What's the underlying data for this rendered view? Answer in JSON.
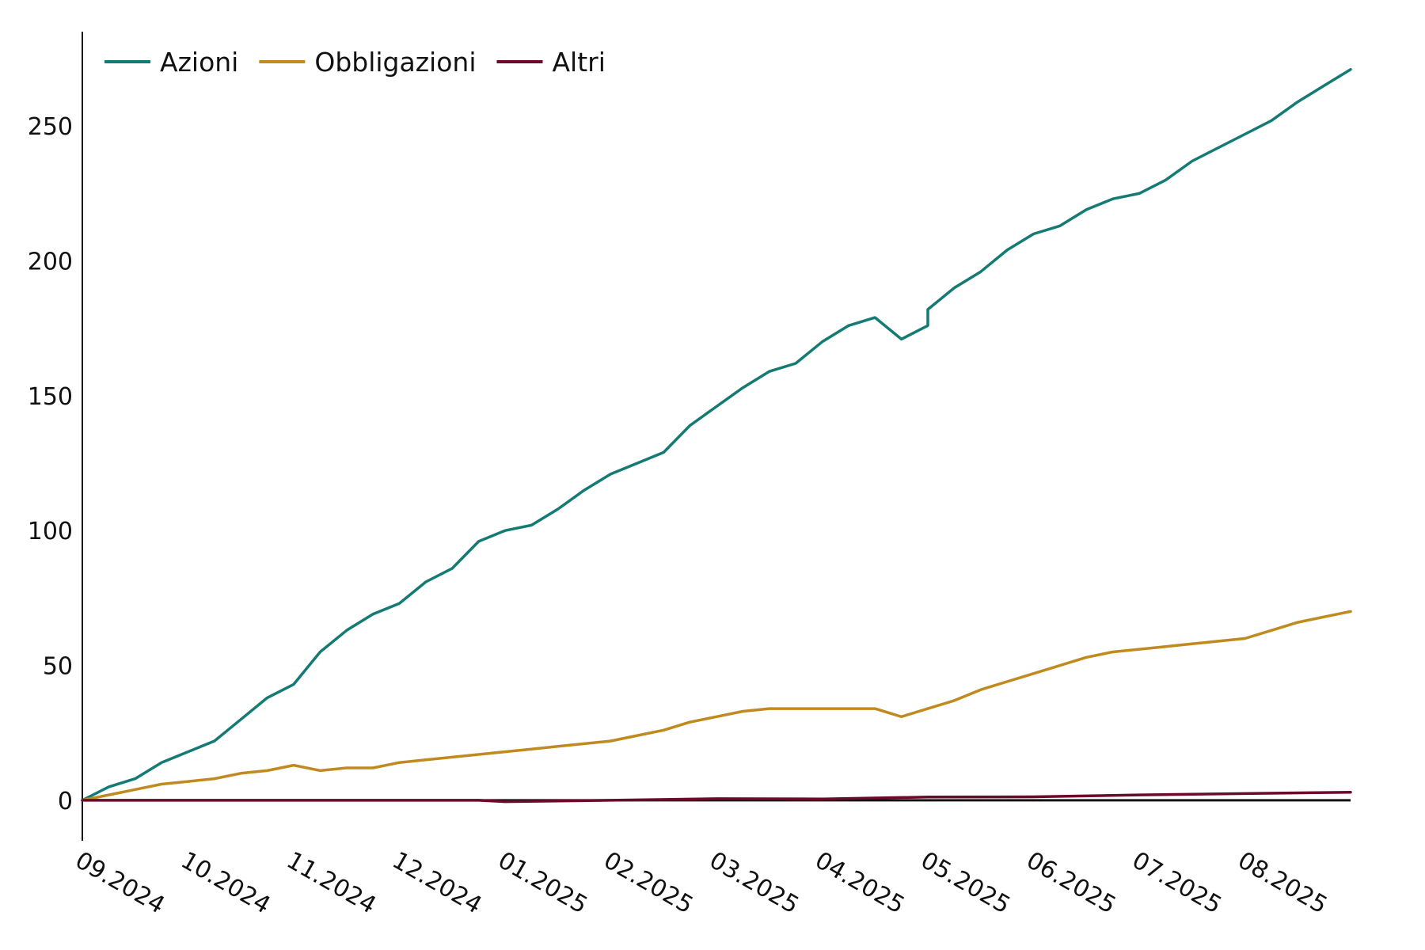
{
  "chart_data": {
    "type": "line",
    "title": "",
    "xlabel": "",
    "ylabel": "",
    "ylim": [
      -15,
      285
    ],
    "yticks": [
      0,
      50,
      100,
      150,
      200,
      250
    ],
    "x_tick_labels": [
      "09.2024",
      "10.2024",
      "11.2024",
      "12.2024",
      "01.2025",
      "02.2025",
      "03.2025",
      "04.2025",
      "05.2025",
      "06.2025",
      "07.2025",
      "08.2025"
    ],
    "x": [
      "09.2024",
      "10.2024",
      "11.2024",
      "12.2024",
      "01.2025",
      "02.2025",
      "03.2025",
      "04.2025",
      "05.2025",
      "06.2025",
      "07.2025",
      "08.2025",
      "09.2025"
    ],
    "x_last_label": "09.2025 (last point, no tick label shown)",
    "grid": false,
    "legend_position": "top-left",
    "series": [
      {
        "name": "Azioni",
        "color": "#137b73",
        "points": [
          [
            "09.2024",
            0
          ],
          [
            "09.2024+",
            5
          ],
          [
            "09.2024++",
            8
          ],
          [
            "09.2024+++",
            14
          ],
          [
            "10.2024",
            18
          ],
          [
            "10.2024+",
            22
          ],
          [
            "10.2024++",
            30
          ],
          [
            "10.2024+++",
            38
          ],
          [
            "11.2024",
            43
          ],
          [
            "11.2024+",
            55
          ],
          [
            "11.2024++",
            63
          ],
          [
            "11.2024+++",
            69
          ],
          [
            "12.2024",
            73
          ],
          [
            "12.2024+",
            81
          ],
          [
            "12.2024++",
            86
          ],
          [
            "12.2024+++",
            96
          ],
          [
            "01.2025",
            100
          ],
          [
            "01.2025+",
            102
          ],
          [
            "01.2025++",
            108
          ],
          [
            "01.2025+++",
            115
          ],
          [
            "02.2025",
            121
          ],
          [
            "02.2025+",
            125
          ],
          [
            "02.2025++",
            129
          ],
          [
            "02.2025+++",
            139
          ],
          [
            "03.2025",
            146
          ],
          [
            "03.2025+",
            153
          ],
          [
            "03.2025++",
            159
          ],
          [
            "03.2025+++",
            162
          ],
          [
            "04.2025",
            170
          ],
          [
            "04.2025+",
            176
          ],
          [
            "04.2025++",
            179
          ],
          [
            "04.2025+++",
            171
          ],
          [
            "04.2025++++",
            176
          ],
          [
            "05.2025",
            182
          ],
          [
            "05.2025+",
            190
          ],
          [
            "05.2025++",
            196
          ],
          [
            "05.2025+++",
            204
          ],
          [
            "06.2025",
            210
          ],
          [
            "06.2025+",
            213
          ],
          [
            "06.2025++",
            219
          ],
          [
            "06.2025+++",
            223
          ],
          [
            "07.2025",
            225
          ],
          [
            "07.2025+",
            230
          ],
          [
            "07.2025++",
            237
          ],
          [
            "07.2025+++",
            242
          ],
          [
            "08.2025",
            247
          ],
          [
            "08.2025+",
            252
          ],
          [
            "08.2025++",
            259
          ],
          [
            "08.2025+++",
            265
          ],
          [
            "09.2025",
            271
          ]
        ]
      },
      {
        "name": "Obbligazioni",
        "color": "#c08a1e",
        "points": [
          [
            "09.2024",
            0
          ],
          [
            "09.2024+",
            2
          ],
          [
            "09.2024++",
            4
          ],
          [
            "09.2024+++",
            6
          ],
          [
            "10.2024",
            7
          ],
          [
            "10.2024+",
            8
          ],
          [
            "10.2024++",
            10
          ],
          [
            "10.2024+++",
            11
          ],
          [
            "11.2024",
            13
          ],
          [
            "11.2024+",
            11
          ],
          [
            "11.2024++",
            12
          ],
          [
            "11.2024+++",
            12
          ],
          [
            "12.2024",
            14
          ],
          [
            "12.2024+",
            15
          ],
          [
            "12.2024++",
            16
          ],
          [
            "12.2024+++",
            17
          ],
          [
            "01.2025",
            18
          ],
          [
            "01.2025+",
            19
          ],
          [
            "01.2025++",
            20
          ],
          [
            "01.2025+++",
            21
          ],
          [
            "02.2025",
            22
          ],
          [
            "02.2025+",
            24
          ],
          [
            "02.2025++",
            26
          ],
          [
            "02.2025+++",
            29
          ],
          [
            "03.2025",
            31
          ],
          [
            "03.2025+",
            33
          ],
          [
            "03.2025++",
            34
          ],
          [
            "03.2025+++",
            34
          ],
          [
            "04.2025",
            34
          ],
          [
            "04.2025+",
            34
          ],
          [
            "04.2025++",
            34
          ],
          [
            "04.2025+++",
            31
          ],
          [
            "05.2025",
            34
          ],
          [
            "05.2025+",
            37
          ],
          [
            "05.2025++",
            41
          ],
          [
            "05.2025+++",
            44
          ],
          [
            "06.2025",
            47
          ],
          [
            "06.2025+",
            50
          ],
          [
            "06.2025++",
            53
          ],
          [
            "06.2025+++",
            55
          ],
          [
            "07.2025",
            56
          ],
          [
            "07.2025+",
            57
          ],
          [
            "07.2025++",
            58
          ],
          [
            "07.2025+++",
            59
          ],
          [
            "08.2025",
            60
          ],
          [
            "08.2025+",
            63
          ],
          [
            "08.2025++",
            66
          ],
          [
            "08.2025+++",
            68
          ],
          [
            "09.2025",
            70
          ]
        ]
      },
      {
        "name": "Altri",
        "color": "#6b0a2a",
        "points": [
          [
            "09.2024",
            0
          ],
          [
            "10.2024",
            0
          ],
          [
            "11.2024",
            0
          ],
          [
            "12.2024",
            0
          ],
          [
            "12.2024+++",
            0
          ],
          [
            "01.2025",
            -0.5
          ],
          [
            "02.2025",
            0
          ],
          [
            "03.2025",
            0.6
          ],
          [
            "04.2025",
            0.5
          ],
          [
            "05.2025",
            1.2
          ],
          [
            "06.2025",
            1.3
          ],
          [
            "07.2025",
            2
          ],
          [
            "08.2025",
            2.5
          ],
          [
            "09.2025",
            3
          ]
        ]
      }
    ]
  }
}
